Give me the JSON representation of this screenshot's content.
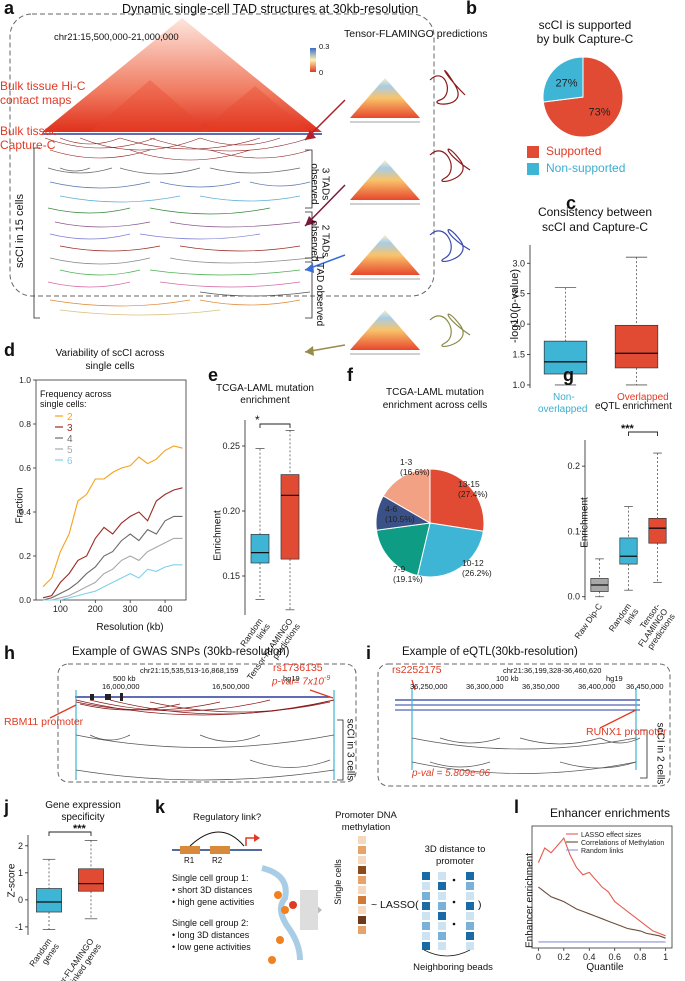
{
  "panels": {
    "a": {
      "letter": "a",
      "title": "Dynamic single-cell TAD structures at 30kb-resolution",
      "locus": "chr21:15,500,000-21,000,000",
      "predictions_label": "Tensor-FLAMINGO predictions",
      "colorbar_max": "0.3",
      "colorbar_min": "0",
      "hic_label_1": "Bulk tissue Hi-C",
      "hic_label_2": "contact maps",
      "capture_label_1": "Bulk tissue",
      "capture_label_2": "Capture-C",
      "sccl_label": "scCI in 15 cells",
      "group3": "3 TADs observed",
      "group2": "2 TADs observed",
      "group1": "1 TAD observed"
    },
    "b": {
      "letter": "b",
      "title_1": "scCI is supported",
      "title_2": "by bulk Capture-C",
      "pie": [
        {
          "label": "Supported",
          "value": 73,
          "pct": "73%",
          "color": "#e14b34"
        },
        {
          "label": "Non-supported",
          "value": 27,
          "pct": "27%",
          "color": "#3fb5d6"
        }
      ]
    },
    "c": {
      "letter": "c",
      "title_1": "Consistency between",
      "title_2": "scCI and Capture-C",
      "ylabel": "-log10(p-value)",
      "yticks": [
        "1.0",
        "1.5",
        "2.0",
        "2.5",
        "3.0"
      ],
      "cat1_1": "Non-",
      "cat1_2": "overlapped",
      "cat2": "Overlapped"
    },
    "d": {
      "letter": "d",
      "title_1": "Variability of scCI across",
      "title_2": "single cells",
      "xlabel": "Resolution (kb)",
      "ylabel": "Fraction",
      "legend_title_1": "Frequency across",
      "legend_title_2": "single cells:",
      "xticks": [
        "100",
        "200",
        "300",
        "400"
      ],
      "yticks": [
        "0.0",
        "0.2",
        "0.4",
        "0.6",
        "0.8",
        "1.0"
      ]
    },
    "e": {
      "letter": "e",
      "title_1": "TCGA-LAML mutation",
      "title_2": "enrichment",
      "ylabel": "Enrichment",
      "yticks": [
        "0.15",
        "0.20",
        "0.25"
      ],
      "star": "*",
      "cat1_1": "Random",
      "cat1_2": "links",
      "cat2_1": "Tensor-FLAMINGO",
      "cat2_2": "predictions"
    },
    "f": {
      "letter": "f",
      "title_1": "TCGA-LAML mutation",
      "title_2": "enrichment across cells"
    },
    "g": {
      "letter": "g",
      "title": "eQTL enrichment",
      "ylabel": "Enrichment",
      "yticks": [
        "0.0",
        "0.1",
        "0.2"
      ],
      "star": "***",
      "cat1_1": "Raw Dip-C",
      "cat2_1": "Random",
      "cat2_2": "links",
      "cat3_1": "Tensor-",
      "cat3_2": "FLAMINGO",
      "cat3_3": "predictions"
    },
    "h": {
      "letter": "h",
      "title": "Example of GWAS SNPs (30kb-resolution)",
      "locus": "chr21:15,535,513-16,868,159",
      "scale": "500 kb",
      "genome": "hg19",
      "coord1": "16,000,000",
      "coord2": "16,500,000",
      "snp": "rs1736135",
      "pval": "p-val= 7x10",
      "pval_exp": "-9",
      "promoter": "RBM11 promoter",
      "sccl": "scCI in 3 cells"
    },
    "i": {
      "letter": "i",
      "title": "Example of eQTL(30kb-resolution)",
      "locus": "chr21:36,199,328-36,460,620",
      "snp": "rs2252175",
      "scale": "100 kb",
      "genome": "hg19",
      "coord1": "36,250,000",
      "coord2": "36,300,000",
      "coord3": "36,350,000",
      "coord4": "36,400,000",
      "coord5": "36,450,000",
      "promoter": "RUNX1 promoter",
      "sccl": "scCI in 2 cells",
      "pval": "p-val = 5.809e-06"
    },
    "j": {
      "letter": "j",
      "title_1": "Gene expression",
      "title_2": "specificity",
      "ylabel": "Z-score",
      "yticks": [
        "-1",
        "0",
        "1",
        "2"
      ],
      "star": "***",
      "cat1_1": "Random",
      "cat1_2": "genes",
      "cat2_1": "Tensor-FLAMINGO",
      "cat2_2": "linked genes"
    },
    "k": {
      "letter": "k",
      "regulatory": "Regulatory link?",
      "r1": "R1",
      "r2": "R2",
      "group1_title": "Single cell group 1:",
      "group1_a": "short 3D distances",
      "group1_b": "high gene activities",
      "group2_title": "Single cell group 2:",
      "group2_a": "long 3D distances",
      "group2_b": "low gene activities",
      "methylation_1": "Promoter DNA",
      "methylation_2": "methylation",
      "single_cells": "Single cells",
      "lasso": "~ LASSO(",
      "close_paren": ")",
      "distance_1": "3D distance to",
      "distance_2": "promoter",
      "neighboring": "Neighboring beads"
    },
    "l": {
      "letter": "l",
      "title": "Enhancer enrichments",
      "ylabel": "Enhancer enrichment",
      "xlabel": "Quantile"
    }
  },
  "chart_data": [
    {
      "panel": "b",
      "type": "pie",
      "categories": [
        "Supported",
        "Non-supported"
      ],
      "values": [
        73,
        27
      ]
    },
    {
      "panel": "c",
      "type": "box",
      "categories": [
        "Non-overlapped",
        "Overlapped"
      ],
      "boxes": [
        {
          "min": 1.0,
          "q1": 1.18,
          "median": 1.38,
          "q3": 1.72,
          "max": 2.6,
          "color": "#3fb5d6"
        },
        {
          "min": 1.0,
          "q1": 1.28,
          "median": 1.52,
          "q3": 1.98,
          "max": 3.1,
          "color": "#e14b34"
        }
      ],
      "ylim": [
        0.95,
        3.3
      ]
    },
    {
      "panel": "d",
      "type": "line",
      "x": [
        50,
        75,
        100,
        125,
        150,
        175,
        200,
        225,
        250,
        275,
        300,
        325,
        350,
        375,
        400,
        425,
        450
      ],
      "series": [
        {
          "name": "2",
          "color": "#f6a21b",
          "values": [
            0.06,
            0.1,
            0.22,
            0.3,
            0.45,
            0.48,
            0.55,
            0.55,
            0.58,
            0.6,
            0.61,
            0.65,
            0.62,
            0.64,
            0.68,
            0.7,
            0.69
          ]
        },
        {
          "name": "3",
          "color": "#9c2a22",
          "values": [
            0.01,
            0.02,
            0.08,
            0.12,
            0.18,
            0.2,
            0.28,
            0.33,
            0.3,
            0.35,
            0.38,
            0.4,
            0.36,
            0.45,
            0.48,
            0.5,
            0.51
          ]
        },
        {
          "name": "4",
          "color": "#6b6b6b",
          "values": [
            0.0,
            0.01,
            0.03,
            0.05,
            0.08,
            0.12,
            0.15,
            0.2,
            0.22,
            0.27,
            0.3,
            0.27,
            0.32,
            0.3,
            0.36,
            0.38,
            0.38
          ]
        },
        {
          "name": "5",
          "color": "#a9a9a9",
          "values": [
            0.0,
            0.0,
            0.01,
            0.02,
            0.04,
            0.06,
            0.08,
            0.12,
            0.14,
            0.18,
            0.2,
            0.18,
            0.22,
            0.24,
            0.26,
            0.28,
            0.28
          ]
        },
        {
          "name": "6",
          "color": "#7fd0ea",
          "values": [
            0.0,
            0.0,
            0.0,
            0.01,
            0.02,
            0.03,
            0.04,
            0.06,
            0.08,
            0.1,
            0.12,
            0.1,
            0.14,
            0.13,
            0.15,
            0.16,
            0.16
          ]
        }
      ],
      "xlim": [
        30,
        460
      ],
      "ylim": [
        0,
        1.0
      ]
    },
    {
      "panel": "e",
      "type": "box",
      "categories": [
        "Random links",
        "Tensor-FLAMINGO predictions"
      ],
      "boxes": [
        {
          "min": 0.132,
          "q1": 0.16,
          "median": 0.168,
          "q3": 0.182,
          "max": 0.248,
          "color": "#3fb5d6"
        },
        {
          "min": 0.124,
          "q1": 0.163,
          "median": 0.212,
          "q3": 0.228,
          "max": 0.262,
          "color": "#e14b34"
        }
      ],
      "ylim": [
        0.12,
        0.27
      ]
    },
    {
      "panel": "f",
      "type": "pie",
      "categories": [
        "13-15",
        "10-12",
        "7-9",
        "4-6",
        "1-3"
      ],
      "values": [
        27.4,
        26.2,
        19.1,
        10.5,
        16.6
      ],
      "labels": [
        "13-15\n(27.4%)",
        "10-12\n(26.2%)",
        "7-9\n(19.1%)",
        "4-6\n(10.5%)",
        "1-3\n(16.6%)"
      ],
      "colors": [
        "#e14b34",
        "#3fb5d6",
        "#0e9c84",
        "#3a5188",
        "#f2a185"
      ]
    },
    {
      "panel": "g",
      "type": "box",
      "categories": [
        "Raw Dip-C",
        "Random links",
        "Tensor-FLAMINGO predictions"
      ],
      "boxes": [
        {
          "min": 0.0,
          "q1": 0.008,
          "median": 0.018,
          "q3": 0.028,
          "max": 0.058,
          "color": "#a8a8a8"
        },
        {
          "min": 0.01,
          "q1": 0.05,
          "median": 0.062,
          "q3": 0.09,
          "max": 0.138,
          "color": "#3fb5d6"
        },
        {
          "min": 0.022,
          "q1": 0.082,
          "median": 0.105,
          "q3": 0.12,
          "max": 0.22,
          "color": "#e14b34"
        }
      ],
      "ylim": [
        -0.005,
        0.24
      ]
    },
    {
      "panel": "j",
      "type": "box",
      "categories": [
        "Random genes",
        "Tensor-FLAMINGO linked genes"
      ],
      "boxes": [
        {
          "min": -1.1,
          "q1": -0.45,
          "median": -0.08,
          "q3": 0.42,
          "max": 1.5,
          "color": "#3fb5d6"
        },
        {
          "min": -0.7,
          "q1": 0.32,
          "median": 0.6,
          "q3": 1.15,
          "max": 2.2,
          "color": "#e14b34"
        }
      ],
      "ylim": [
        -1.3,
        2.4
      ]
    },
    {
      "panel": "l",
      "type": "line",
      "x": [
        0.0,
        0.05,
        0.1,
        0.15,
        0.2,
        0.25,
        0.3,
        0.35,
        0.4,
        0.45,
        0.5,
        0.55,
        0.6,
        0.65,
        0.7,
        0.75,
        0.8,
        0.85,
        0.9,
        0.95,
        1.0
      ],
      "series": [
        {
          "name": "LASSO effect sizes",
          "color": "#e85a4f",
          "values": [
            0.7,
            0.82,
            0.78,
            0.84,
            0.9,
            0.76,
            0.66,
            0.6,
            0.62,
            0.56,
            0.5,
            0.46,
            0.38,
            0.34,
            0.3,
            0.26,
            0.22,
            0.18,
            0.14,
            0.12,
            0.1
          ]
        },
        {
          "name": "Correlations of Methylation",
          "color": "#6b4c3b",
          "values": [
            0.5,
            0.46,
            0.42,
            0.4,
            0.38,
            0.35,
            0.32,
            0.3,
            0.28,
            0.26,
            0.24,
            0.22,
            0.2,
            0.18,
            0.16,
            0.15,
            0.14,
            0.12,
            0.11,
            0.1,
            0.08
          ]
        },
        {
          "name": "Random links",
          "color": "#8f8fd8",
          "values": [
            0.05,
            0.05,
            0.05,
            0.05,
            0.05,
            0.05,
            0.05,
            0.05,
            0.05,
            0.05,
            0.05,
            0.05,
            0.05,
            0.05,
            0.05,
            0.05,
            0.05,
            0.05,
            0.05,
            0.05,
            0.05
          ]
        }
      ],
      "xticks": [
        "0",
        "0.2",
        "0.4",
        "0.6",
        "0.8",
        "1"
      ],
      "xlim": [
        -0.05,
        1.05
      ],
      "ylim": [
        0,
        1.0
      ]
    }
  ]
}
